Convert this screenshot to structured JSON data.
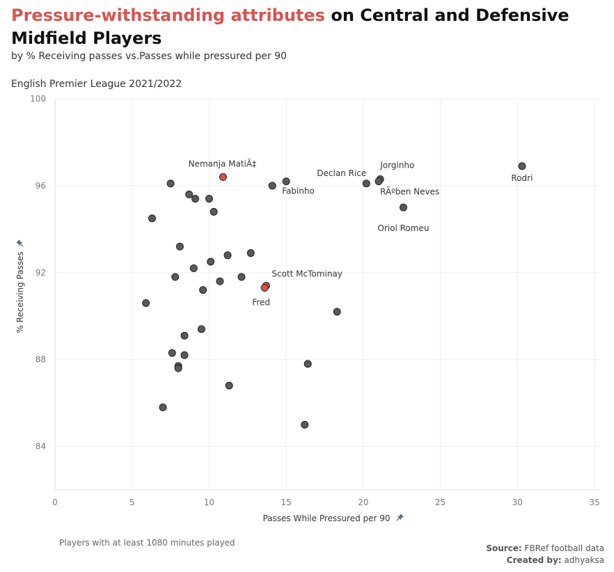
{
  "header": {
    "title_highlight": "Pressure-withstanding attributes",
    "title_rest": " on Central and Defensive Midfield Players",
    "subtitle": "by % Receiving passes vs.Passes while pressured per 90",
    "league": "English Premier League 2021/2022"
  },
  "footer": {
    "note": "Players with at least 1080 minutes played",
    "source_label": "Source:",
    "source_value": " FBRef football data",
    "created_label": "Created by:",
    "created_value": " adhyaksa"
  },
  "colors": {
    "highlight": "#d9534f",
    "point": "#5a5a5e",
    "point_stroke": "#222222",
    "grid": "#eeeeee"
  },
  "chart_data": {
    "type": "scatter",
    "xlabel": "Passes While Pressured per 90",
    "ylabel": "% Receiving Passes",
    "xlim": [
      0,
      35
    ],
    "ylim": [
      82,
      100
    ],
    "xticks": [
      0,
      5,
      10,
      15,
      20,
      25,
      30,
      35
    ],
    "yticks": [
      84,
      88,
      92,
      96,
      100
    ],
    "grid": true,
    "axis_icon": "pin-icon",
    "points": [
      {
        "x": 10.9,
        "y": 96.4,
        "label": "Nemanja MatiÄ‡",
        "highlight": true
      },
      {
        "x": 13.7,
        "y": 91.4,
        "label": "Scott McTominay",
        "highlight": true
      },
      {
        "x": 13.6,
        "y": 91.3,
        "label": "Fred",
        "highlight": true
      },
      {
        "x": 30.3,
        "y": 96.9,
        "label": "Rodri",
        "highlight": false
      },
      {
        "x": 21.1,
        "y": 96.3,
        "label": "Jorginho",
        "highlight": false
      },
      {
        "x": 21.0,
        "y": 96.2,
        "label": "RÃºben Neves",
        "highlight": false
      },
      {
        "x": 20.2,
        "y": 96.1,
        "label": "Declan Rice",
        "highlight": false
      },
      {
        "x": 22.6,
        "y": 95.0,
        "label": "Oriol Romeu",
        "highlight": false
      },
      {
        "x": 15.0,
        "y": 96.2,
        "label": "Fabinho",
        "highlight": false
      },
      {
        "x": 14.1,
        "y": 96.0,
        "label": "",
        "highlight": false
      },
      {
        "x": 7.5,
        "y": 96.1,
        "label": "",
        "highlight": false
      },
      {
        "x": 8.7,
        "y": 95.6,
        "label": "",
        "highlight": false
      },
      {
        "x": 9.1,
        "y": 95.4,
        "label": "",
        "highlight": false
      },
      {
        "x": 10.0,
        "y": 95.4,
        "label": "",
        "highlight": false
      },
      {
        "x": 10.3,
        "y": 94.8,
        "label": "",
        "highlight": false
      },
      {
        "x": 6.3,
        "y": 94.5,
        "label": "",
        "highlight": false
      },
      {
        "x": 8.1,
        "y": 93.2,
        "label": "",
        "highlight": false
      },
      {
        "x": 12.7,
        "y": 92.9,
        "label": "",
        "highlight": false
      },
      {
        "x": 11.2,
        "y": 92.8,
        "label": "",
        "highlight": false
      },
      {
        "x": 10.1,
        "y": 92.5,
        "label": "",
        "highlight": false
      },
      {
        "x": 9.0,
        "y": 92.2,
        "label": "",
        "highlight": false
      },
      {
        "x": 7.8,
        "y": 91.8,
        "label": "",
        "highlight": false
      },
      {
        "x": 12.1,
        "y": 91.8,
        "label": "",
        "highlight": false
      },
      {
        "x": 10.7,
        "y": 91.6,
        "label": "",
        "highlight": false
      },
      {
        "x": 9.6,
        "y": 91.2,
        "label": "",
        "highlight": false
      },
      {
        "x": 5.9,
        "y": 90.6,
        "label": "",
        "highlight": false
      },
      {
        "x": 18.3,
        "y": 90.2,
        "label": "",
        "highlight": false
      },
      {
        "x": 9.5,
        "y": 89.4,
        "label": "",
        "highlight": false
      },
      {
        "x": 8.4,
        "y": 89.1,
        "label": "",
        "highlight": false
      },
      {
        "x": 7.6,
        "y": 88.3,
        "label": "",
        "highlight": false
      },
      {
        "x": 8.4,
        "y": 88.2,
        "label": "",
        "highlight": false
      },
      {
        "x": 16.4,
        "y": 87.8,
        "label": "",
        "highlight": false
      },
      {
        "x": 8.0,
        "y": 87.7,
        "label": "",
        "highlight": false
      },
      {
        "x": 8.0,
        "y": 87.6,
        "label": "",
        "highlight": false
      },
      {
        "x": 11.3,
        "y": 86.8,
        "label": "",
        "highlight": false
      },
      {
        "x": 7.0,
        "y": 85.8,
        "label": "",
        "highlight": false
      },
      {
        "x": 16.2,
        "y": 85.0,
        "label": "",
        "highlight": false
      }
    ]
  }
}
